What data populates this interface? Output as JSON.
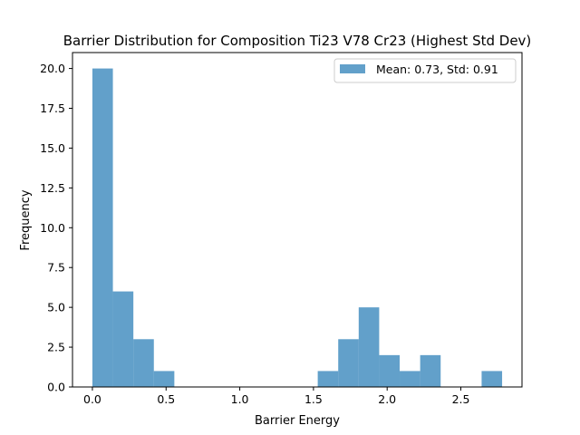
{
  "chart_data": {
    "type": "bar",
    "title": "Barrier Distribution for Composition Ti23 V78 Cr23 (Highest Std Dev)",
    "xlabel": "Barrier Energy",
    "ylabel": "Frequency",
    "xlim": [
      -0.135,
      2.915
    ],
    "ylim": [
      0,
      21
    ],
    "xticks": [
      0.0,
      0.5,
      1.0,
      1.5,
      2.0,
      2.5
    ],
    "xtick_labels": [
      "0.0",
      "0.5",
      "1.0",
      "1.5",
      "2.0",
      "2.5"
    ],
    "yticks": [
      0.0,
      2.5,
      5.0,
      7.5,
      10.0,
      12.5,
      15.0,
      17.5,
      20.0
    ],
    "ytick_labels": [
      "0.0",
      "2.5",
      "5.0",
      "7.5",
      "10.0",
      "12.5",
      "15.0",
      "17.5",
      "20.0"
    ],
    "bin_edges": [
      0.0,
      0.139,
      0.278,
      0.417,
      0.556,
      0.695,
      0.834,
      0.973,
      1.112,
      1.251,
      1.39,
      1.529,
      1.668,
      1.807,
      1.946,
      2.085,
      2.224,
      2.363,
      2.502,
      2.641,
      2.78
    ],
    "counts": [
      20,
      6,
      3,
      1,
      0,
      0,
      0,
      0,
      0,
      0,
      0,
      1,
      3,
      5,
      2,
      1,
      2,
      0,
      0,
      1
    ],
    "bar_color": "#1f77b4",
    "bar_alpha": 0.7,
    "legend": {
      "position": "upper right",
      "entries": [
        {
          "label": "Mean: 0.73, Std: 0.91",
          "color": "#1f77b4"
        }
      ]
    },
    "grid": false
  }
}
